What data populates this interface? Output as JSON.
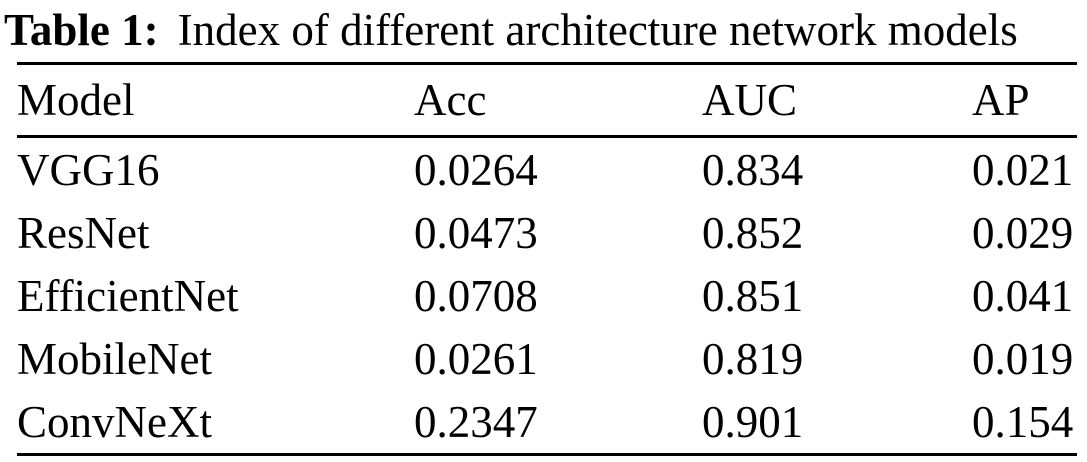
{
  "caption": {
    "label": "Table 1:",
    "text": "Index of different architecture network models"
  },
  "table": {
    "columns": [
      "Model",
      "Acc",
      "AUC",
      "AP"
    ],
    "rows": [
      {
        "model": "VGG16",
        "acc": "0.0264",
        "auc": "0.834",
        "ap": "0.021"
      },
      {
        "model": "ResNet",
        "acc": "0.0473",
        "auc": "0.852",
        "ap": "0.029"
      },
      {
        "model": "EfficientNet",
        "acc": "0.0708",
        "auc": "0.851",
        "ap": "0.041"
      },
      {
        "model": "MobileNet",
        "acc": "0.0261",
        "auc": "0.819",
        "ap": "0.019"
      },
      {
        "model": "ConvNeXt",
        "acc": "0.2347",
        "auc": "0.901",
        "ap": "0.154"
      }
    ]
  },
  "colors": {
    "text": "#000000",
    "background": "#ffffff",
    "rule": "#000000"
  }
}
